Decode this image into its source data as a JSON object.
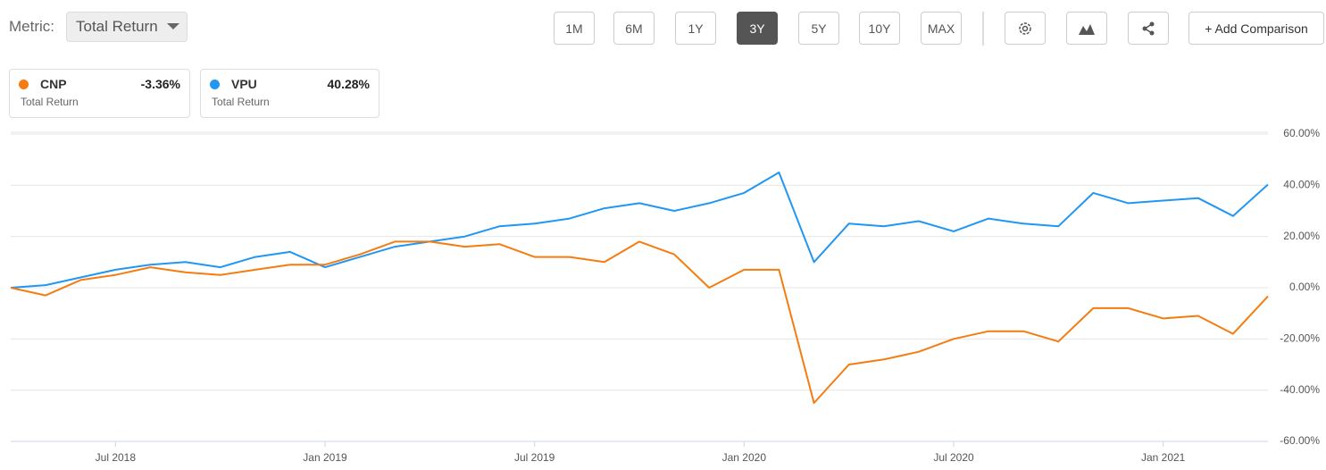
{
  "toolbar": {
    "metric_label": "Metric:",
    "metric_value": "Total Return",
    "ranges": [
      "1M",
      "6M",
      "1Y",
      "3Y",
      "5Y",
      "10Y",
      "MAX"
    ],
    "active_range": 3,
    "add_comparison": "+ Add Comparison"
  },
  "chart_data": {
    "type": "line",
    "x": [
      "2018-04",
      "2018-05",
      "2018-06",
      "2018-07",
      "2018-08",
      "2018-09",
      "2018-10",
      "2018-11",
      "2018-12",
      "2019-01",
      "2019-02",
      "2019-03",
      "2019-04",
      "2019-05",
      "2019-06",
      "2019-07",
      "2019-08",
      "2019-09",
      "2019-10",
      "2019-11",
      "2019-12",
      "2020-01",
      "2020-02",
      "2020-03",
      "2020-04",
      "2020-05",
      "2020-06",
      "2020-07",
      "2020-08",
      "2020-09",
      "2020-10",
      "2020-11",
      "2020-12",
      "2021-01",
      "2021-02",
      "2021-03",
      "2021-04"
    ],
    "xlim": [
      "2018-04",
      "2021-04"
    ],
    "xticks": [
      {
        "value": "2018-07",
        "label": "Jul 2018"
      },
      {
        "value": "2019-01",
        "label": "Jan 2019"
      },
      {
        "value": "2019-07",
        "label": "Jul 2019"
      },
      {
        "value": "2020-01",
        "label": "Jan 2020"
      },
      {
        "value": "2020-07",
        "label": "Jul 2020"
      },
      {
        "value": "2021-01",
        "label": "Jan 2021"
      }
    ],
    "ylim": [
      -60,
      60
    ],
    "yticks": [
      {
        "value": 60,
        "label": "60.00%"
      },
      {
        "value": 40,
        "label": "40.00%"
      },
      {
        "value": 20,
        "label": "20.00%"
      },
      {
        "value": 0,
        "label": "0.00%"
      },
      {
        "value": -20,
        "label": "-20.00%"
      },
      {
        "value": -40,
        "label": "-40.00%"
      },
      {
        "value": -60,
        "label": "-60.00%"
      }
    ],
    "grid": true,
    "series": [
      {
        "name": "CNP",
        "color": "#f57c10",
        "summary_label": "-3.36%",
        "summary_caption": "Total Return",
        "values": [
          0,
          -3,
          3,
          5,
          8,
          6,
          5,
          7,
          9,
          9,
          13,
          18,
          18,
          16,
          17,
          12,
          12,
          10,
          18,
          13,
          0,
          7,
          7,
          -45,
          -30,
          -28,
          -25,
          -20,
          -17,
          -17,
          -21,
          -8,
          -8,
          -12,
          -11,
          -18,
          -3.36
        ]
      },
      {
        "name": "VPU",
        "color": "#2196f3",
        "summary_label": "40.28%",
        "summary_caption": "Total Return",
        "values": [
          0,
          1,
          4,
          7,
          9,
          10,
          8,
          12,
          14,
          8,
          12,
          16,
          18,
          20,
          24,
          25,
          27,
          31,
          33,
          30,
          33,
          37,
          45,
          10,
          25,
          24,
          26,
          22,
          27,
          25,
          24,
          37,
          33,
          34,
          35,
          28,
          40.28
        ]
      }
    ]
  }
}
